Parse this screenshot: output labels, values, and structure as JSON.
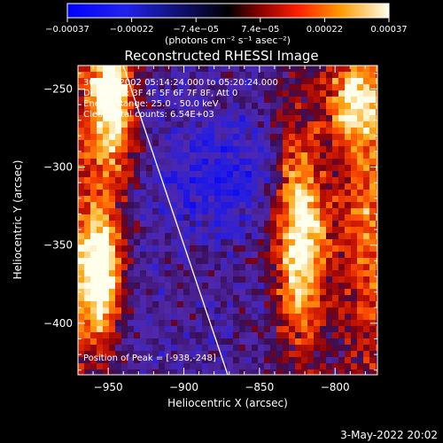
{
  "chart_data": {
    "type": "heatmap",
    "title": "Reconstructed RHESSI Image",
    "xlabel": "Heliocentric X (arcsec)",
    "ylabel": "Heliocentric Y (arcsec)",
    "xlim": [
      -970,
      -772
    ],
    "ylim": [
      -433,
      -235
    ],
    "x_ticks": [
      -950,
      -900,
      -850,
      -800
    ],
    "x_tick_labels": [
      "−950",
      "−900",
      "−850",
      "−800"
    ],
    "y_ticks": [
      -250,
      -300,
      -350,
      -400
    ],
    "y_tick_labels": [
      "−250",
      "−300",
      "−350",
      "−400"
    ],
    "colorbar": {
      "range": [
        -0.00037,
        0.00037
      ],
      "tick_labels": [
        "−0.00037",
        "−0.00022",
        "−7.4e−05",
        "7.4e−05",
        "0.00022",
        "0.00037"
      ],
      "unit_label": "(photons cm⁻² s⁻¹ asec⁻²)"
    },
    "annotations": [
      "30-May-2002 05:14:24.000 to 05:20:24.000",
      "Detectors: 3F 4F 5F 6F 7F 8F, Att 0",
      "Energy Range: 25.0 - 50.0 keV",
      "Clean    Total counts: 6.54E+03"
    ],
    "peak_label": "Position of Peak = [-938,-248]",
    "peak": [
      -938,
      -248
    ],
    "limb_line": {
      "x": [
        -940,
        -871
      ],
      "y": [
        -235,
        -433
      ]
    }
  },
  "footer": {
    "timestamp": "3-May-2022 20:02"
  }
}
